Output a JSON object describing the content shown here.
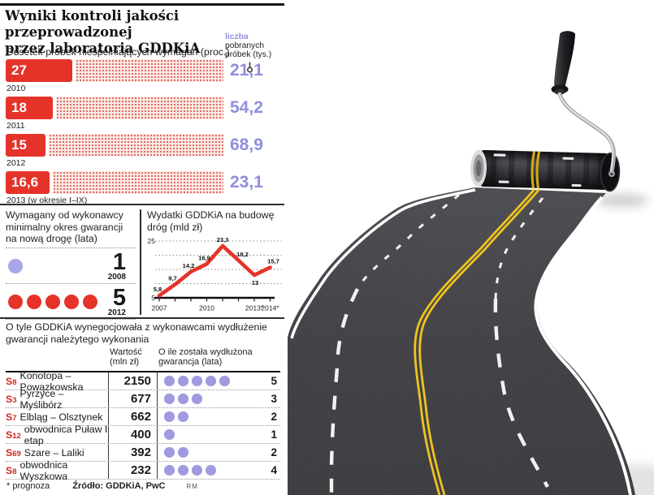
{
  "header": {
    "title_lines": [
      "Wyniki kontroli jakości przeprowadzonej",
      "przez laboratoria GDDKiA"
    ]
  },
  "labels": {
    "count_label_accent": "liczba",
    "count_label_rest": "pobranych próbek (tys.)"
  },
  "footer": {
    "note": "* prognoza",
    "source": "Źródło: GDDKiA, PwC",
    "credit": "RM"
  },
  "colors": {
    "red": "#e5332a",
    "purple": "#8f8edd",
    "table_dot": "#a09ae0",
    "yellow": "#eec31f",
    "asphalt": "#2e2e33"
  },
  "chart_data": [
    {
      "type": "bar",
      "title": "Odsetek próbek niespełniających wymagań (proc.)",
      "categories": [
        "2010",
        "2011",
        "2012",
        "2013 (w okresie I–IX)"
      ],
      "values": [
        27,
        18,
        15,
        16.6
      ],
      "value_labels": [
        "27",
        "18",
        "15",
        "16,6"
      ],
      "secondary_series_name": "liczba pobranych próbek (tys.)",
      "secondary_values": [
        "21,1",
        "54,2",
        "68,9",
        "23,1"
      ],
      "bar_color": "#e5332a",
      "value_color": "#8f8edd"
    },
    {
      "type": "pictogram",
      "title": "Wymagany od wykonawcy minimalny okres gwarancji na nową drogę (lata)",
      "rows": [
        {
          "year": "2008",
          "value": 1,
          "label": "1",
          "dot_color": "#aaa6e8"
        },
        {
          "year": "2012",
          "value": 5,
          "label": "5",
          "dot_color": "#e5332a"
        }
      ]
    },
    {
      "type": "line",
      "title": "Wydatki GDDKiA na budowę dróg (mld zł)",
      "x": [
        "2007",
        "2008",
        "2009",
        "2010",
        "2011",
        "2012",
        "2013*",
        "2014*"
      ],
      "values": [
        5.8,
        9.7,
        14.2,
        16.9,
        23.3,
        18.2,
        13,
        15.7
      ],
      "point_labels": [
        "5,8",
        "9,7",
        "14,2",
        "16,9",
        "23,3",
        "18,2",
        "13",
        "15,7"
      ],
      "x_tick_labels": [
        {
          "index": 0,
          "label": "2007"
        },
        {
          "index": 3,
          "label": "2010"
        },
        {
          "index": 6,
          "label": "2013*"
        },
        {
          "index": 7,
          "label": "2014*"
        }
      ],
      "ylim": [
        5,
        25
      ],
      "y_axis_labels": [
        "5",
        "25"
      ],
      "gridlines": [
        10,
        15,
        20,
        25
      ],
      "line_color": "#e5332a"
    },
    {
      "type": "table",
      "title": "O tyle GDDKiA wynegocjowała z wykonawcami wydłużenie gwarancji należytego wykonania",
      "columns": [
        "",
        "Wartość (mln zł)",
        "O ile została wydłużona gwarancja (lata)"
      ],
      "rows": [
        {
          "code": "S8",
          "name": "Konotopa – Powązkowska",
          "value": "2150",
          "years": 5
        },
        {
          "code": "S3",
          "name": "Pyrzyce – Myślibórz",
          "value": "677",
          "years": 3
        },
        {
          "code": "S7",
          "name": "Elbląg – Olsztynek",
          "value": "662",
          "years": 2
        },
        {
          "code": "S12",
          "name": "obwodnica Puław I etap",
          "value": "400",
          "years": 1
        },
        {
          "code": "S69",
          "name": "Szare – Laliki",
          "value": "392",
          "years": 2
        },
        {
          "code": "S8",
          "name": "obwodnica Wyszkowa",
          "value": "232",
          "years": 4
        }
      ]
    }
  ]
}
